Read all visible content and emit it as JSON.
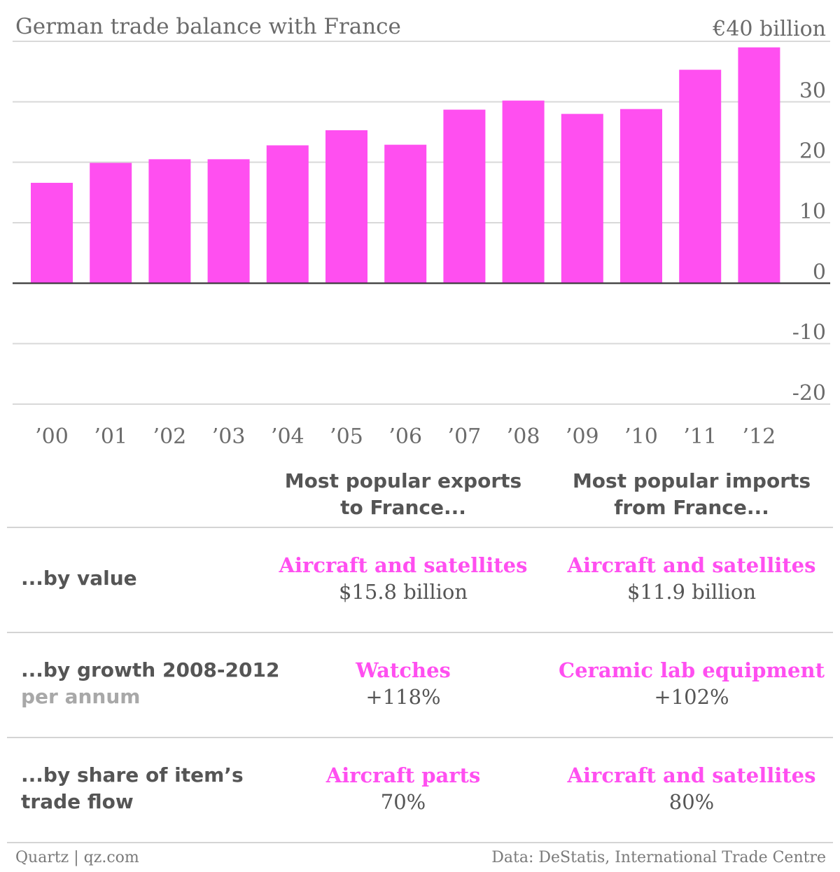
{
  "chart_data": {
    "type": "bar",
    "title": "German trade balance with France",
    "unit_label": "€40 billion",
    "categories": [
      "’00",
      "’01",
      "’02",
      "’03",
      "’04",
      "’05",
      "’06",
      "’07",
      "’08",
      "’09",
      "’10",
      "’11",
      "’12"
    ],
    "values": [
      16.6,
      19.9,
      20.5,
      20.5,
      22.8,
      25.3,
      22.9,
      28.7,
      30.2,
      28.0,
      28.8,
      35.3,
      39.0
    ],
    "y_ticks": [
      "-20",
      "-10",
      "0",
      "10",
      "20",
      "30"
    ],
    "ylim": [
      -20,
      40
    ],
    "grid": true,
    "bar_color": "#ff4ff0"
  },
  "table": {
    "headers": {
      "exports": [
        "Most popular exports",
        "to France..."
      ],
      "imports": [
        "Most popular imports",
        "from France..."
      ]
    },
    "rows": [
      {
        "label": [
          "...by value"
        ],
        "sublabel": "",
        "exports": {
          "item": "Aircraft and satellites",
          "value": "$15.8 billion"
        },
        "imports": {
          "item": "Aircraft and satellites",
          "value": "$11.9 billion"
        }
      },
      {
        "label": [
          "...by growth 2008-2012"
        ],
        "sublabel": "per annum",
        "exports": {
          "item": "Watches",
          "value": "+118%"
        },
        "imports": {
          "item": "Ceramic lab equipment",
          "value": "+102%"
        }
      },
      {
        "label": [
          "...by share of item’s",
          "trade flow"
        ],
        "sublabel": "",
        "exports": {
          "item": "Aircraft parts",
          "value": "70%"
        },
        "imports": {
          "item": "Aircraft and satellites",
          "value": "80%"
        }
      }
    ]
  },
  "footer": {
    "left": "Quartz | qz.com",
    "right": "Data: DeStatis, International Trade Centre"
  }
}
